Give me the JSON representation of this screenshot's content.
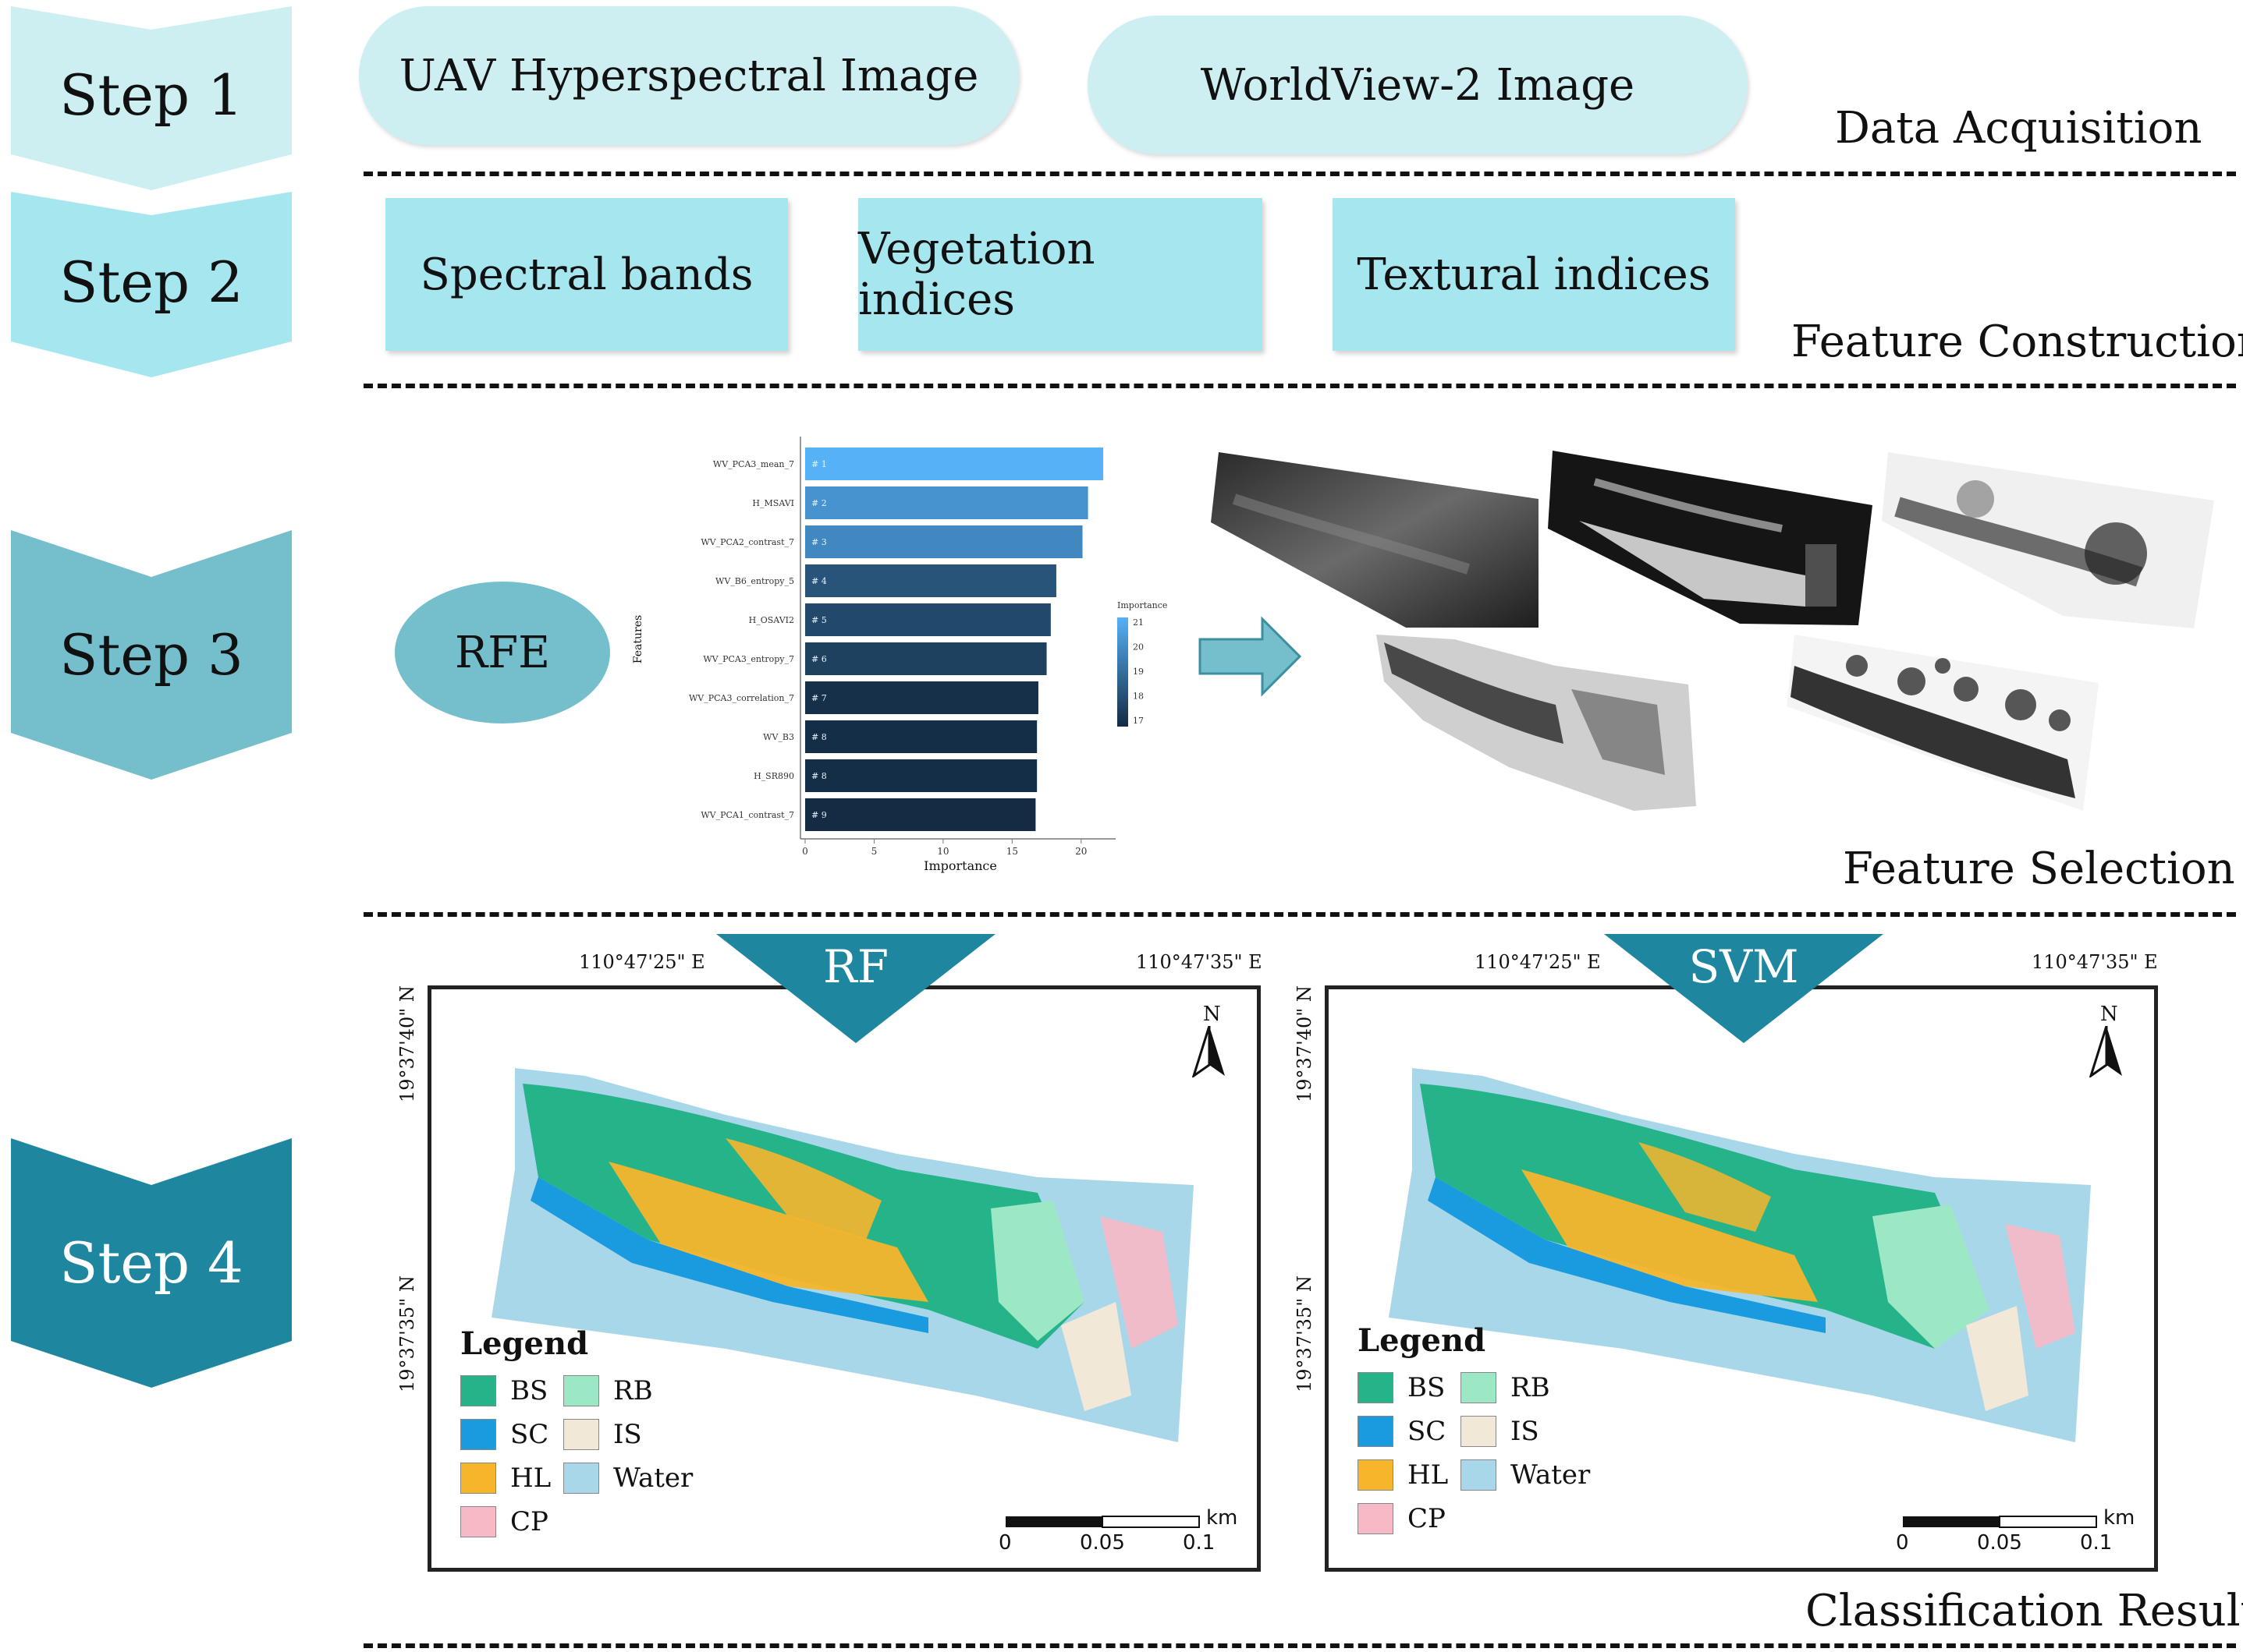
{
  "steps": [
    {
      "label": "Step 1",
      "color": "#cdeff2"
    },
    {
      "label": "Step 2",
      "color": "#a6e6ee"
    },
    {
      "label": "Step 3",
      "color": "#75bfcd"
    },
    {
      "label": "Step 4",
      "color": "#1f86a0"
    }
  ],
  "step1": {
    "items": [
      "UAV Hyperspectral Image",
      "WorldView-2 Image"
    ],
    "section": "Data Acquisition"
  },
  "step2": {
    "items": [
      "Spectral bands",
      "Vegetation indices",
      "Textural indices"
    ],
    "section": "Feature Construction"
  },
  "step3": {
    "method": "RFE",
    "section": "Feature Selection"
  },
  "step4": {
    "section": "Classification Results",
    "maps": [
      {
        "title": "RF"
      },
      {
        "title": "SVM"
      }
    ],
    "lon_labels": [
      "110°47'25\" E",
      "110°47'35\" E"
    ],
    "lat_labels": [
      "19°37'40\" N",
      "19°37'35\" N"
    ],
    "north": "N",
    "legend_title": "Legend",
    "legend": [
      {
        "code": "BS",
        "color": "#25b38a"
      },
      {
        "code": "RB",
        "color": "#9de8c4"
      },
      {
        "code": "SC",
        "color": "#1a9be0"
      },
      {
        "code": "IS",
        "color": "#f2e8d8"
      },
      {
        "code": "HL",
        "color": "#f7b52c"
      },
      {
        "code": "Water",
        "color": "#a9d7ea"
      },
      {
        "code": "CP",
        "color": "#f7b9c6"
      }
    ],
    "scale": {
      "ticks": [
        "0",
        "0.05",
        "0.1"
      ],
      "unit": "km"
    }
  },
  "chart_data": {
    "type": "bar",
    "orientation": "horizontal",
    "categories": [
      "WV_PCA3_mean_7",
      "H_MSAVI",
      "WV_PCA2_contrast_7",
      "WV_B6_entropy_5",
      "H_OSAVI2",
      "WV_PCA3_entropy_7",
      "WV_PCA3_correlation_7",
      "WV_B3",
      "H_SR890",
      "WV_PCA1_contrast_7"
    ],
    "rank_labels": [
      "# 1",
      "# 2",
      "# 3",
      "# 4",
      "# 5",
      "# 6",
      "# 7",
      "# 8",
      "# 8",
      "# 9"
    ],
    "values": [
      21.6,
      20.5,
      20.1,
      18.2,
      17.8,
      17.5,
      16.9,
      16.8,
      16.8,
      16.7
    ],
    "xlabel": "Importance",
    "ylabel": "Features",
    "xticks": [
      0,
      5,
      10,
      15,
      20
    ],
    "xlim": [
      0,
      22.5
    ],
    "legend_title": "Importance",
    "legend_ticks": [
      21,
      20,
      19,
      18,
      17
    ],
    "color_low": "#132b43",
    "color_high": "#56b1f7"
  }
}
